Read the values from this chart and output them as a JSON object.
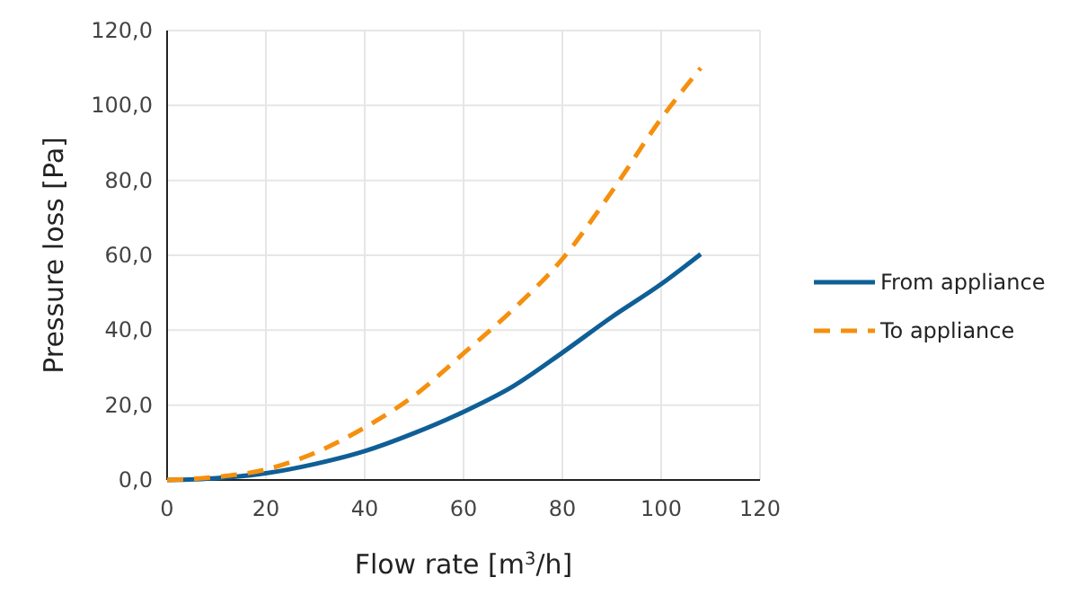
{
  "chart_data": {
    "type": "line",
    "xlabel": "Flow rate [m$^{3}$/h]",
    "ylabel": "Pressure loss [Pa]",
    "xlim": [
      0,
      120
    ],
    "xticks": [
      0,
      20,
      40,
      60,
      80,
      100,
      120
    ],
    "ylim": [
      0,
      120
    ],
    "yticks": [
      {
        "value": 0,
        "label": "0,0"
      },
      {
        "value": 20,
        "label": "20,0"
      },
      {
        "value": 40,
        "label": "40,0"
      },
      {
        "value": 60,
        "label": "60,0"
      },
      {
        "value": 80,
        "label": "80,0"
      },
      {
        "value": 100,
        "label": "100,0"
      },
      {
        "value": 120,
        "label": "120,0"
      }
    ],
    "grid": true,
    "legend": "right",
    "marker": "none",
    "series": [
      {
        "name": "From appliance",
        "color": "#0f5f96",
        "line_style": "solid",
        "x": [
          0,
          10,
          20,
          30,
          40,
          50,
          60,
          70,
          80,
          90,
          100,
          108
        ],
        "values": [
          0,
          0.5,
          1.8,
          4.3,
          7.7,
          12.5,
          18.2,
          25,
          34,
          43.5,
          52.3,
          60.3
        ]
      },
      {
        "name": "To appliance",
        "color": "#f5900f",
        "line_style": "dashed",
        "x": [
          0,
          10,
          20,
          30,
          40,
          50,
          60,
          70,
          80,
          90,
          100,
          108
        ],
        "values": [
          0,
          0.8,
          2.8,
          7.3,
          14,
          22.5,
          33.8,
          45.5,
          59,
          77,
          96.5,
          110
        ]
      }
    ]
  }
}
